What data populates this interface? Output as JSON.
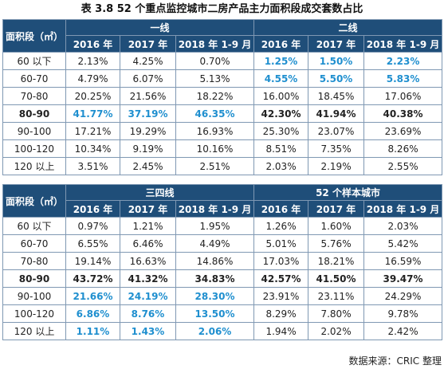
{
  "title": "表 3.8    52 个重点监控城市二房产品主力面积段成交套数占比",
  "area_header": "面积段（㎡）",
  "year_headers": [
    "2016 年",
    "2017 年",
    "2018 年 1-9 月"
  ],
  "top": {
    "groups": [
      "一线",
      "二线"
    ],
    "rows": [
      {
        "label": "60 以下",
        "bold": false,
        "values": [
          "2.13%",
          "4.25%",
          "0.70%",
          "1.25%",
          "1.50%",
          "2.23%"
        ],
        "highlight": [
          false,
          false,
          false,
          true,
          true,
          true
        ]
      },
      {
        "label": "60-70",
        "bold": false,
        "values": [
          "4.79%",
          "6.07%",
          "5.13%",
          "4.55%",
          "5.50%",
          "5.83%"
        ],
        "highlight": [
          false,
          false,
          false,
          true,
          true,
          true
        ]
      },
      {
        "label": "70-80",
        "bold": false,
        "values": [
          "20.25%",
          "21.56%",
          "18.22%",
          "16.00%",
          "18.45%",
          "17.06%"
        ],
        "highlight": [
          false,
          false,
          false,
          false,
          false,
          false
        ]
      },
      {
        "label": "80-90",
        "bold": true,
        "values": [
          "41.77%",
          "37.19%",
          "46.35%",
          "42.30%",
          "41.94%",
          "40.38%"
        ],
        "highlight": [
          true,
          true,
          true,
          false,
          false,
          false
        ]
      },
      {
        "label": "90-100",
        "bold": false,
        "values": [
          "17.21%",
          "19.29%",
          "16.93%",
          "25.30%",
          "23.07%",
          "23.69%"
        ],
        "highlight": [
          false,
          false,
          false,
          false,
          false,
          false
        ]
      },
      {
        "label": "100-120",
        "bold": false,
        "values": [
          "10.34%",
          "9.19%",
          "10.16%",
          "8.51%",
          "7.35%",
          "8.26%"
        ],
        "highlight": [
          false,
          false,
          false,
          false,
          false,
          false
        ]
      },
      {
        "label": "120 以上",
        "bold": false,
        "values": [
          "3.51%",
          "2.45%",
          "2.51%",
          "2.03%",
          "2.19%",
          "2.55%"
        ],
        "highlight": [
          false,
          false,
          false,
          false,
          false,
          false
        ]
      }
    ]
  },
  "bottom": {
    "groups": [
      "三四线",
      "52 个样本城市"
    ],
    "rows": [
      {
        "label": "60 以下",
        "bold": false,
        "values": [
          "0.97%",
          "1.21%",
          "1.95%",
          "1.26%",
          "1.60%",
          "2.03%"
        ],
        "highlight": [
          false,
          false,
          false,
          false,
          false,
          false
        ]
      },
      {
        "label": "60-70",
        "bold": false,
        "values": [
          "6.55%",
          "6.46%",
          "4.49%",
          "5.01%",
          "5.76%",
          "5.42%"
        ],
        "highlight": [
          false,
          false,
          false,
          false,
          false,
          false
        ]
      },
      {
        "label": "70-80",
        "bold": false,
        "values": [
          "19.14%",
          "16.63%",
          "14.86%",
          "17.03%",
          "18.21%",
          "16.59%"
        ],
        "highlight": [
          false,
          false,
          false,
          false,
          false,
          false
        ]
      },
      {
        "label": "80-90",
        "bold": true,
        "values": [
          "43.72%",
          "41.32%",
          "34.83%",
          "42.57%",
          "41.50%",
          "39.47%"
        ],
        "highlight": [
          false,
          false,
          false,
          false,
          false,
          false
        ]
      },
      {
        "label": "90-100",
        "bold": false,
        "values": [
          "21.66%",
          "24.19%",
          "28.30%",
          "23.91%",
          "23.11%",
          "24.29%"
        ],
        "highlight": [
          true,
          true,
          true,
          false,
          false,
          false
        ]
      },
      {
        "label": "100-120",
        "bold": false,
        "values": [
          "6.86%",
          "8.76%",
          "13.50%",
          "8.29%",
          "7.80%",
          "9.78%"
        ],
        "highlight": [
          true,
          true,
          true,
          false,
          false,
          false
        ]
      },
      {
        "label": "120 以上",
        "bold": false,
        "values": [
          "1.11%",
          "1.43%",
          "2.06%",
          "1.94%",
          "2.02%",
          "2.42%"
        ],
        "highlight": [
          true,
          true,
          true,
          false,
          false,
          false
        ]
      }
    ]
  },
  "source": "数据来源：CRIC 整理",
  "colors": {
    "header_bg": "#1f4e79",
    "highlight_text": "#1f8fcf",
    "border": "#7f98b3"
  }
}
